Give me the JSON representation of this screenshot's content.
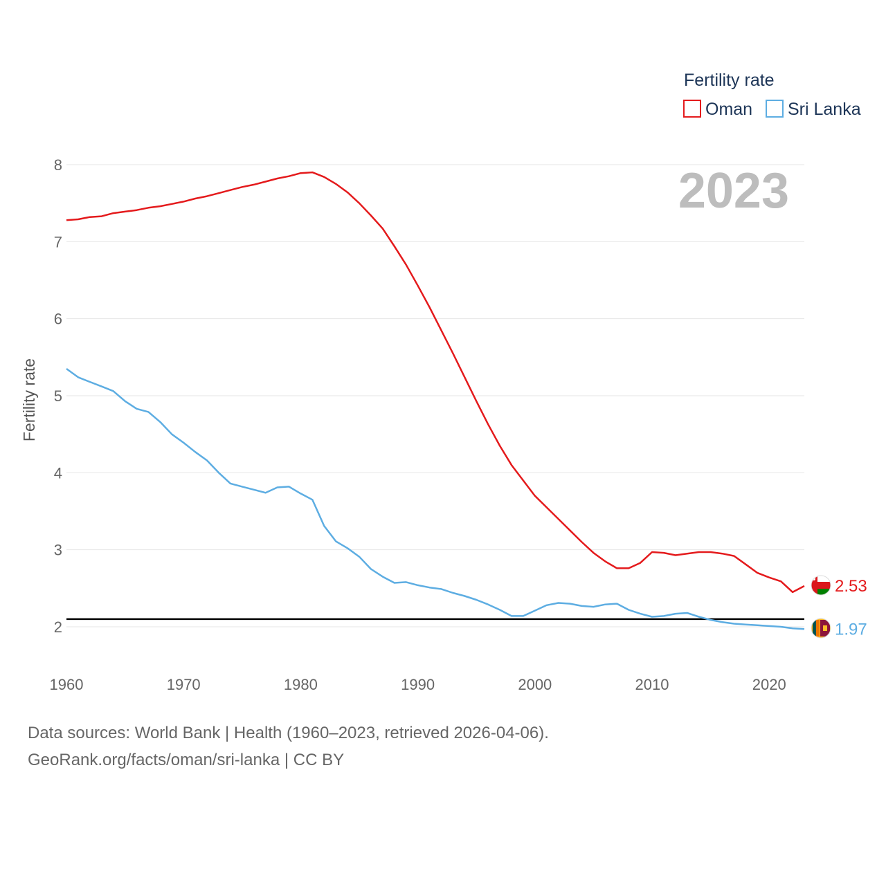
{
  "chart_data": {
    "type": "line",
    "ylabel": "Fertility rate",
    "xlabel": "",
    "xlim": [
      1960,
      2023
    ],
    "ylim": [
      1.6,
      8.3
    ],
    "x_ticks": [
      1960,
      1970,
      1980,
      1990,
      2000,
      2010,
      2020
    ],
    "y_ticks": [
      2,
      3,
      4,
      5,
      6,
      7,
      8
    ],
    "grid": true,
    "legend": {
      "title": "Fertility rate",
      "position": "top-right"
    },
    "current_year": "2023",
    "reference_line": {
      "value": 2.1,
      "color": "#000000"
    },
    "x": [
      1960,
      1961,
      1962,
      1963,
      1964,
      1965,
      1966,
      1967,
      1968,
      1969,
      1970,
      1971,
      1972,
      1973,
      1974,
      1975,
      1976,
      1977,
      1978,
      1979,
      1980,
      1981,
      1982,
      1983,
      1984,
      1985,
      1986,
      1987,
      1988,
      1989,
      1990,
      1991,
      1992,
      1993,
      1994,
      1995,
      1996,
      1997,
      1998,
      1999,
      2000,
      2001,
      2002,
      2003,
      2004,
      2005,
      2006,
      2007,
      2008,
      2009,
      2010,
      2011,
      2012,
      2013,
      2014,
      2015,
      2016,
      2017,
      2018,
      2019,
      2020,
      2021,
      2022,
      2023
    ],
    "series": [
      {
        "name": "Oman",
        "color": "#e41a1c",
        "end_label": "2.53",
        "flag": "oman-flag",
        "values": [
          7.28,
          7.29,
          7.32,
          7.33,
          7.37,
          7.39,
          7.41,
          7.44,
          7.46,
          7.49,
          7.52,
          7.56,
          7.59,
          7.63,
          7.67,
          7.71,
          7.74,
          7.78,
          7.82,
          7.85,
          7.89,
          7.9,
          7.84,
          7.75,
          7.64,
          7.5,
          7.34,
          7.17,
          6.94,
          6.7,
          6.43,
          6.15,
          5.85,
          5.55,
          5.24,
          4.93,
          4.63,
          4.35,
          4.1,
          3.9,
          3.7,
          3.55,
          3.4,
          3.25,
          3.1,
          2.96,
          2.85,
          2.76,
          2.76,
          2.83,
          2.97,
          2.96,
          2.93,
          2.95,
          2.97,
          2.97,
          2.95,
          2.92,
          2.81,
          2.7,
          2.64,
          2.59,
          2.45,
          2.53
        ]
      },
      {
        "name": "Sri Lanka",
        "color": "#5dade2",
        "end_label": "1.97",
        "flag": "sri-lanka-flag",
        "values": [
          5.35,
          5.24,
          5.18,
          5.12,
          5.06,
          4.93,
          4.83,
          4.79,
          4.66,
          4.5,
          4.39,
          4.27,
          4.16,
          4.0,
          3.86,
          3.82,
          3.78,
          3.74,
          3.81,
          3.82,
          3.73,
          3.65,
          3.31,
          3.11,
          3.02,
          2.91,
          2.75,
          2.65,
          2.57,
          2.58,
          2.54,
          2.51,
          2.49,
          2.44,
          2.4,
          2.35,
          2.29,
          2.22,
          2.14,
          2.14,
          2.21,
          2.28,
          2.31,
          2.3,
          2.27,
          2.26,
          2.29,
          2.3,
          2.22,
          2.17,
          2.13,
          2.14,
          2.17,
          2.18,
          2.13,
          2.09,
          2.06,
          2.04,
          2.03,
          2.02,
          2.01,
          2.0,
          1.98,
          1.97
        ]
      }
    ]
  },
  "footer": {
    "source": "Data sources: World Bank | Health (1960–2023, retrieved 2026-04-06).",
    "credit": "GeoRank.org/facts/oman/sri-lanka | CC BY"
  }
}
